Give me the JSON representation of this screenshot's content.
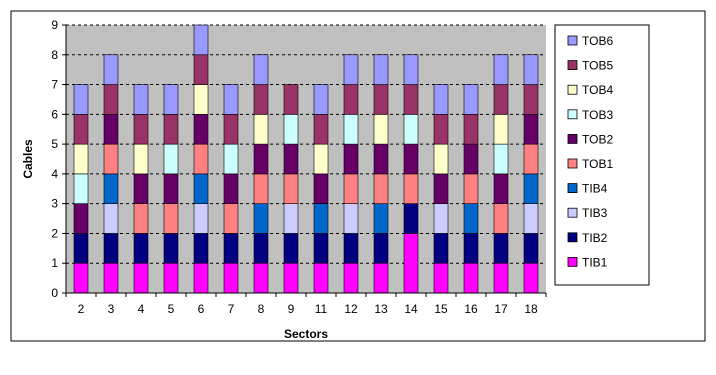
{
  "chart_data": {
    "type": "bar",
    "stacked": true,
    "categories": [
      "2",
      "3",
      "4",
      "5",
      "6",
      "7",
      "8",
      "9",
      "11",
      "12",
      "13",
      "14",
      "15",
      "16",
      "17",
      "18"
    ],
    "series": [
      {
        "name": "TIB1",
        "color": "#ff00ff",
        "values": [
          1,
          1,
          1,
          1,
          1,
          1,
          1,
          1,
          1,
          1,
          1,
          2,
          1,
          1,
          1,
          1
        ]
      },
      {
        "name": "TIB2",
        "color": "#000080",
        "values": [
          1,
          1,
          1,
          1,
          1,
          1,
          1,
          1,
          1,
          1,
          1,
          1,
          1,
          1,
          1,
          1
        ]
      },
      {
        "name": "TIB3",
        "color": "#ccccff",
        "values": [
          0,
          1,
          0,
          0,
          1,
          0,
          0,
          1,
          0,
          1,
          0,
          0,
          1,
          0,
          0,
          1
        ]
      },
      {
        "name": "TIB4",
        "color": "#0066cc",
        "values": [
          0,
          1,
          0,
          0,
          1,
          0,
          1,
          0,
          1,
          0,
          1,
          0,
          0,
          1,
          0,
          1
        ]
      },
      {
        "name": "TOB1",
        "color": "#ff8080",
        "values": [
          0,
          1,
          1,
          1,
          1,
          1,
          1,
          1,
          0,
          1,
          1,
          1,
          0,
          1,
          1,
          1
        ]
      },
      {
        "name": "TOB2",
        "color": "#660066",
        "values": [
          1,
          1,
          1,
          1,
          1,
          1,
          1,
          1,
          1,
          1,
          1,
          1,
          1,
          1,
          1,
          1
        ]
      },
      {
        "name": "TOB3",
        "color": "#ccffff",
        "values": [
          1,
          0,
          0,
          1,
          0,
          1,
          0,
          1,
          0,
          1,
          0,
          1,
          0,
          0,
          1,
          0
        ]
      },
      {
        "name": "TOB4",
        "color": "#ffffcc",
        "values": [
          1,
          0,
          1,
          0,
          1,
          0,
          1,
          0,
          1,
          0,
          1,
          0,
          1,
          0,
          1,
          0
        ]
      },
      {
        "name": "TOB5",
        "color": "#993366",
        "values": [
          1,
          1,
          1,
          1,
          1,
          1,
          1,
          1,
          1,
          1,
          1,
          1,
          1,
          1,
          1,
          1
        ]
      },
      {
        "name": "TOB6",
        "color": "#9999ff",
        "values": [
          1,
          1,
          1,
          1,
          1,
          1,
          1,
          0,
          1,
          1,
          1,
          1,
          1,
          1,
          1,
          1
        ]
      }
    ],
    "xlabel": "Sectors",
    "ylabel": "Cables",
    "ylim": [
      0,
      9
    ],
    "yticks": [
      "0",
      "1",
      "2",
      "3",
      "4",
      "5",
      "6",
      "7",
      "8",
      "9"
    ],
    "grid": true,
    "legend": "right"
  }
}
